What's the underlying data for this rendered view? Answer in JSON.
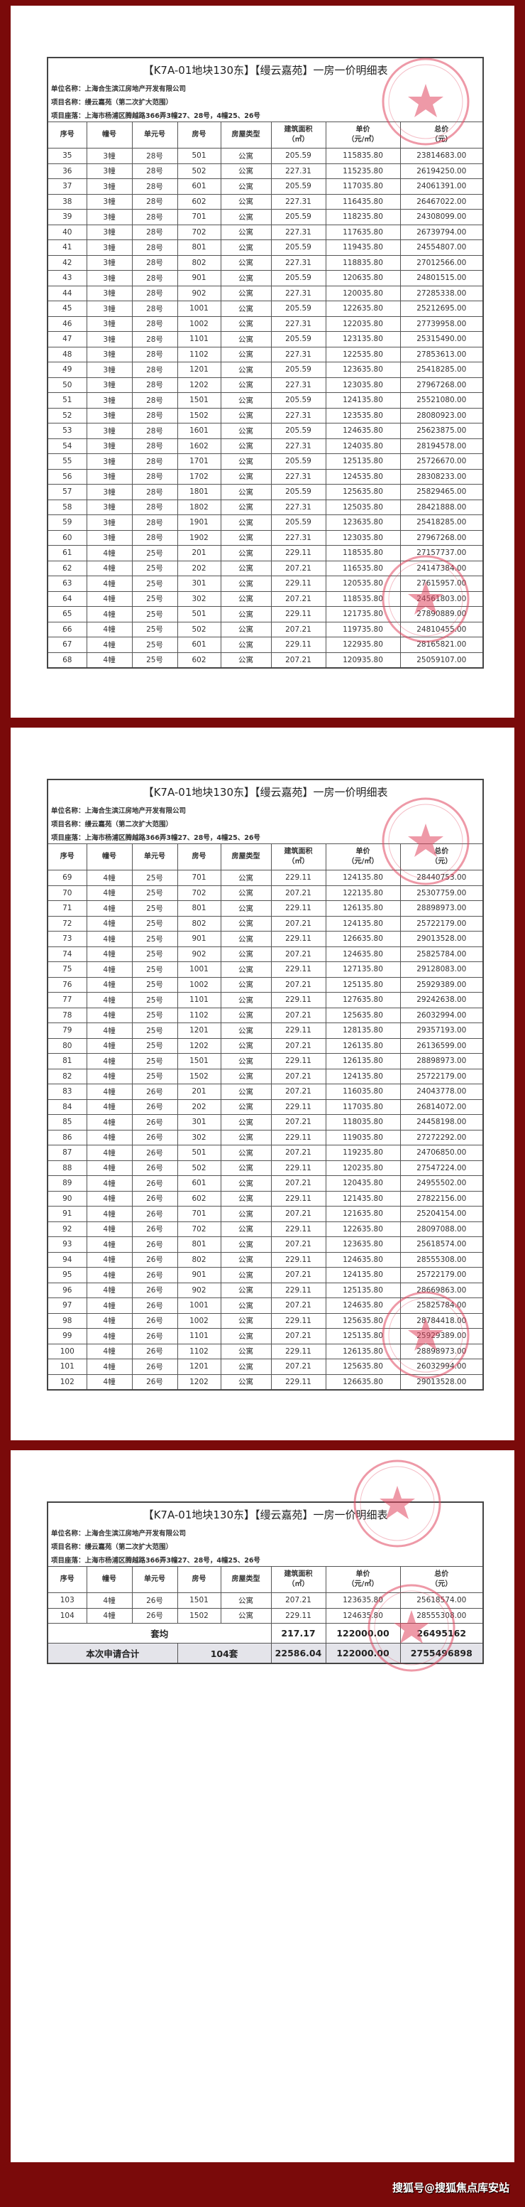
{
  "document": {
    "title": "【K7A-01地块130东】【缦云嘉苑】一房一价明细表",
    "company_label": "单位名称：上海合生滨江房地产开发有限公司",
    "project_label": "项目名称：缦云嘉苑（第二次扩大范围）",
    "location_label": "项目座落：上海市杨浦区腾越路366弄3幢27、28号，4幢25、26号",
    "columns": [
      "序号",
      "幢号",
      "单元号",
      "房号",
      "房屋类型",
      "建筑面积\n（㎡）",
      "单价\n（元/㎡）",
      "总价\n（元）"
    ]
  },
  "pages": [
    {
      "rows": [
        [
          "35",
          "3幢",
          "28号",
          "501",
          "公寓",
          "205.59",
          "115835.80",
          "23814683.00"
        ],
        [
          "36",
          "3幢",
          "28号",
          "502",
          "公寓",
          "227.31",
          "115235.80",
          "26194250.00"
        ],
        [
          "37",
          "3幢",
          "28号",
          "601",
          "公寓",
          "205.59",
          "117035.80",
          "24061391.00"
        ],
        [
          "38",
          "3幢",
          "28号",
          "602",
          "公寓",
          "227.31",
          "116435.80",
          "26467022.00"
        ],
        [
          "39",
          "3幢",
          "28号",
          "701",
          "公寓",
          "205.59",
          "118235.80",
          "24308099.00"
        ],
        [
          "40",
          "3幢",
          "28号",
          "702",
          "公寓",
          "227.31",
          "117635.80",
          "26739794.00"
        ],
        [
          "41",
          "3幢",
          "28号",
          "801",
          "公寓",
          "205.59",
          "119435.80",
          "24554807.00"
        ],
        [
          "42",
          "3幢",
          "28号",
          "802",
          "公寓",
          "227.31",
          "118835.80",
          "27012566.00"
        ],
        [
          "43",
          "3幢",
          "28号",
          "901",
          "公寓",
          "205.59",
          "120635.80",
          "24801515.00"
        ],
        [
          "44",
          "3幢",
          "28号",
          "902",
          "公寓",
          "227.31",
          "120035.80",
          "27285338.00"
        ],
        [
          "45",
          "3幢",
          "28号",
          "1001",
          "公寓",
          "205.59",
          "122635.80",
          "25212695.00"
        ],
        [
          "46",
          "3幢",
          "28号",
          "1002",
          "公寓",
          "227.31",
          "122035.80",
          "27739958.00"
        ],
        [
          "47",
          "3幢",
          "28号",
          "1101",
          "公寓",
          "205.59",
          "123135.80",
          "25315490.00"
        ],
        [
          "48",
          "3幢",
          "28号",
          "1102",
          "公寓",
          "227.31",
          "122535.80",
          "27853613.00"
        ],
        [
          "49",
          "3幢",
          "28号",
          "1201",
          "公寓",
          "205.59",
          "123635.80",
          "25418285.00"
        ],
        [
          "50",
          "3幢",
          "28号",
          "1202",
          "公寓",
          "227.31",
          "123035.80",
          "27967268.00"
        ],
        [
          "51",
          "3幢",
          "28号",
          "1501",
          "公寓",
          "205.59",
          "124135.80",
          "25521080.00"
        ],
        [
          "52",
          "3幢",
          "28号",
          "1502",
          "公寓",
          "227.31",
          "123535.80",
          "28080923.00"
        ],
        [
          "53",
          "3幢",
          "28号",
          "1601",
          "公寓",
          "205.59",
          "124635.80",
          "25623875.00"
        ],
        [
          "54",
          "3幢",
          "28号",
          "1602",
          "公寓",
          "227.31",
          "124035.80",
          "28194578.00"
        ],
        [
          "55",
          "3幢",
          "28号",
          "1701",
          "公寓",
          "205.59",
          "125135.80",
          "25726670.00"
        ],
        [
          "56",
          "3幢",
          "28号",
          "1702",
          "公寓",
          "227.31",
          "124535.80",
          "28308233.00"
        ],
        [
          "57",
          "3幢",
          "28号",
          "1801",
          "公寓",
          "205.59",
          "125635.80",
          "25829465.00"
        ],
        [
          "58",
          "3幢",
          "28号",
          "1802",
          "公寓",
          "227.31",
          "125035.80",
          "28421888.00"
        ],
        [
          "59",
          "3幢",
          "28号",
          "1901",
          "公寓",
          "205.59",
          "123635.80",
          "25418285.00"
        ],
        [
          "60",
          "3幢",
          "28号",
          "1902",
          "公寓",
          "227.31",
          "123035.80",
          "27967268.00"
        ],
        [
          "61",
          "4幢",
          "25号",
          "201",
          "公寓",
          "229.11",
          "118535.80",
          "27157737.00"
        ],
        [
          "62",
          "4幢",
          "25号",
          "202",
          "公寓",
          "207.21",
          "116535.80",
          "24147384.00"
        ],
        [
          "63",
          "4幢",
          "25号",
          "301",
          "公寓",
          "229.11",
          "120535.80",
          "27615957.00"
        ],
        [
          "64",
          "4幢",
          "25号",
          "302",
          "公寓",
          "207.21",
          "118535.80",
          "24561803.00"
        ],
        [
          "65",
          "4幢",
          "25号",
          "501",
          "公寓",
          "229.11",
          "121735.80",
          "27890889.00"
        ],
        [
          "66",
          "4幢",
          "25号",
          "502",
          "公寓",
          "207.21",
          "119735.80",
          "24810455.00"
        ],
        [
          "67",
          "4幢",
          "25号",
          "601",
          "公寓",
          "229.11",
          "122935.80",
          "28165821.00"
        ],
        [
          "68",
          "4幢",
          "25号",
          "602",
          "公寓",
          "207.21",
          "120935.80",
          "25059107.00"
        ]
      ]
    },
    {
      "rows": [
        [
          "69",
          "4幢",
          "25号",
          "701",
          "公寓",
          "229.11",
          "124135.80",
          "28440753.00"
        ],
        [
          "70",
          "4幢",
          "25号",
          "702",
          "公寓",
          "207.21",
          "122135.80",
          "25307759.00"
        ],
        [
          "71",
          "4幢",
          "25号",
          "801",
          "公寓",
          "229.11",
          "126135.80",
          "28898973.00"
        ],
        [
          "72",
          "4幢",
          "25号",
          "802",
          "公寓",
          "207.21",
          "124135.80",
          "25722179.00"
        ],
        [
          "73",
          "4幢",
          "25号",
          "901",
          "公寓",
          "229.11",
          "126635.80",
          "29013528.00"
        ],
        [
          "74",
          "4幢",
          "25号",
          "902",
          "公寓",
          "207.21",
          "124635.80",
          "25825784.00"
        ],
        [
          "75",
          "4幢",
          "25号",
          "1001",
          "公寓",
          "229.11",
          "127135.80",
          "29128083.00"
        ],
        [
          "76",
          "4幢",
          "25号",
          "1002",
          "公寓",
          "207.21",
          "125135.80",
          "25929389.00"
        ],
        [
          "77",
          "4幢",
          "25号",
          "1101",
          "公寓",
          "229.11",
          "127635.80",
          "29242638.00"
        ],
        [
          "78",
          "4幢",
          "25号",
          "1102",
          "公寓",
          "207.21",
          "125635.80",
          "26032994.00"
        ],
        [
          "79",
          "4幢",
          "25号",
          "1201",
          "公寓",
          "229.11",
          "128135.80",
          "29357193.00"
        ],
        [
          "80",
          "4幢",
          "25号",
          "1202",
          "公寓",
          "207.21",
          "126135.80",
          "26136599.00"
        ],
        [
          "81",
          "4幢",
          "25号",
          "1501",
          "公寓",
          "229.11",
          "126135.80",
          "28898973.00"
        ],
        [
          "82",
          "4幢",
          "25号",
          "1502",
          "公寓",
          "207.21",
          "124135.80",
          "25722179.00"
        ],
        [
          "83",
          "4幢",
          "26号",
          "201",
          "公寓",
          "207.21",
          "116035.80",
          "24043778.00"
        ],
        [
          "84",
          "4幢",
          "26号",
          "202",
          "公寓",
          "229.11",
          "117035.80",
          "26814072.00"
        ],
        [
          "85",
          "4幢",
          "26号",
          "301",
          "公寓",
          "207.21",
          "118035.80",
          "24458198.00"
        ],
        [
          "86",
          "4幢",
          "26号",
          "302",
          "公寓",
          "229.11",
          "119035.80",
          "27272292.00"
        ],
        [
          "87",
          "4幢",
          "26号",
          "501",
          "公寓",
          "207.21",
          "119235.80",
          "24706850.00"
        ],
        [
          "88",
          "4幢",
          "26号",
          "502",
          "公寓",
          "229.11",
          "120235.80",
          "27547224.00"
        ],
        [
          "89",
          "4幢",
          "26号",
          "601",
          "公寓",
          "207.21",
          "120435.80",
          "24955502.00"
        ],
        [
          "90",
          "4幢",
          "26号",
          "602",
          "公寓",
          "229.11",
          "121435.80",
          "27822156.00"
        ],
        [
          "91",
          "4幢",
          "26号",
          "701",
          "公寓",
          "207.21",
          "121635.80",
          "25204154.00"
        ],
        [
          "92",
          "4幢",
          "26号",
          "702",
          "公寓",
          "229.11",
          "122635.80",
          "28097088.00"
        ],
        [
          "93",
          "4幢",
          "26号",
          "801",
          "公寓",
          "207.21",
          "123635.80",
          "25618574.00"
        ],
        [
          "94",
          "4幢",
          "26号",
          "802",
          "公寓",
          "229.11",
          "124635.80",
          "28555308.00"
        ],
        [
          "95",
          "4幢",
          "26号",
          "901",
          "公寓",
          "207.21",
          "124135.80",
          "25722179.00"
        ],
        [
          "96",
          "4幢",
          "26号",
          "902",
          "公寓",
          "229.11",
          "125135.80",
          "28669863.00"
        ],
        [
          "97",
          "4幢",
          "26号",
          "1001",
          "公寓",
          "207.21",
          "124635.80",
          "25825784.00"
        ],
        [
          "98",
          "4幢",
          "26号",
          "1002",
          "公寓",
          "229.11",
          "125635.80",
          "28784418.00"
        ],
        [
          "99",
          "4幢",
          "26号",
          "1101",
          "公寓",
          "207.21",
          "125135.80",
          "25929389.00"
        ],
        [
          "100",
          "4幢",
          "26号",
          "1102",
          "公寓",
          "229.11",
          "126135.80",
          "28898973.00"
        ],
        [
          "101",
          "4幢",
          "26号",
          "1201",
          "公寓",
          "207.21",
          "125635.80",
          "26032994.00"
        ],
        [
          "102",
          "4幢",
          "26号",
          "1202",
          "公寓",
          "229.11",
          "126635.80",
          "29013528.00"
        ]
      ]
    },
    {
      "rows": [
        [
          "103",
          "4幢",
          "26号",
          "1501",
          "公寓",
          "207.21",
          "123635.80",
          "25618574.00"
        ],
        [
          "104",
          "4幢",
          "26号",
          "1502",
          "公寓",
          "229.11",
          "124635.80",
          "28555308.00"
        ]
      ]
    }
  ],
  "summary": {
    "average": {
      "label": "套均",
      "area": "217.17",
      "unit_price": "122000.00",
      "total": "26495162"
    },
    "grand_total": {
      "label": "本次申请合计",
      "count": "104套",
      "area": "22586.04",
      "unit_price": "122000.00",
      "total": "2755496898"
    }
  },
  "footer": {
    "watermark": "搜狐号@搜狐焦点库安站"
  },
  "colors": {
    "frame": "#7a0a0a",
    "seal": "#e0455e",
    "total_row_bg": "#e4e4ea"
  }
}
